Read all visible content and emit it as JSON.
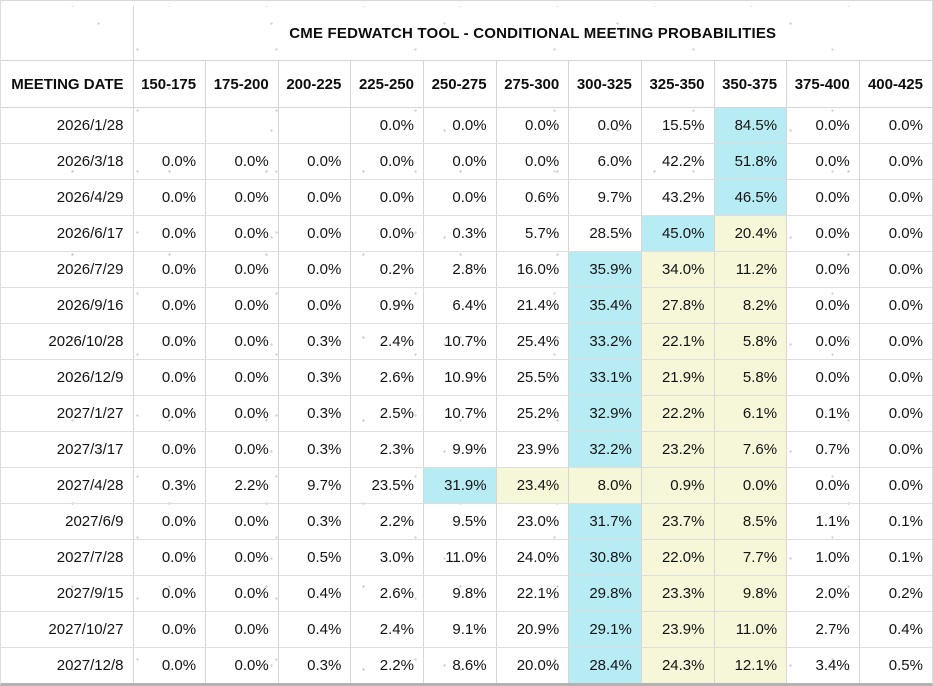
{
  "table": {
    "title": "CME FEDWATCH TOOL - CONDITIONAL MEETING PROBABILITIES",
    "columns": [
      "MEETING DATE",
      "150-175",
      "175-200",
      "200-225",
      "225-250",
      "250-275",
      "275-300",
      "300-325",
      "325-350",
      "350-375",
      "375-400",
      "400-425"
    ],
    "colors": {
      "highlight_max": "#b8ecf4",
      "highlight_path": "#f6f6d8",
      "grid_line": "#d6d6d6",
      "text": "#141414"
    },
    "rows": [
      {
        "date": "2026/1/28",
        "values": [
          "",
          "",
          "",
          "0.0%",
          "0.0%",
          "0.0%",
          "0.0%",
          "15.5%",
          "84.5%",
          "0.0%",
          "0.0%"
        ],
        "max_col": 8,
        "path_cols": []
      },
      {
        "date": "2026/3/18",
        "values": [
          "0.0%",
          "0.0%",
          "0.0%",
          "0.0%",
          "0.0%",
          "0.0%",
          "6.0%",
          "42.2%",
          "51.8%",
          "0.0%",
          "0.0%"
        ],
        "max_col": 8,
        "path_cols": []
      },
      {
        "date": "2026/4/29",
        "values": [
          "0.0%",
          "0.0%",
          "0.0%",
          "0.0%",
          "0.0%",
          "0.6%",
          "9.7%",
          "43.2%",
          "46.5%",
          "0.0%",
          "0.0%"
        ],
        "max_col": 8,
        "path_cols": []
      },
      {
        "date": "2026/6/17",
        "values": [
          "0.0%",
          "0.0%",
          "0.0%",
          "0.0%",
          "0.3%",
          "5.7%",
          "28.5%",
          "45.0%",
          "20.4%",
          "0.0%",
          "0.0%"
        ],
        "max_col": 7,
        "path_cols": [
          8
        ]
      },
      {
        "date": "2026/7/29",
        "values": [
          "0.0%",
          "0.0%",
          "0.0%",
          "0.2%",
          "2.8%",
          "16.0%",
          "35.9%",
          "34.0%",
          "11.2%",
          "0.0%",
          "0.0%"
        ],
        "max_col": 6,
        "path_cols": [
          7,
          8
        ]
      },
      {
        "date": "2026/9/16",
        "values": [
          "0.0%",
          "0.0%",
          "0.0%",
          "0.9%",
          "6.4%",
          "21.4%",
          "35.4%",
          "27.8%",
          "8.2%",
          "0.0%",
          "0.0%"
        ],
        "max_col": 6,
        "path_cols": [
          7,
          8
        ]
      },
      {
        "date": "2026/10/28",
        "values": [
          "0.0%",
          "0.0%",
          "0.3%",
          "2.4%",
          "10.7%",
          "25.4%",
          "33.2%",
          "22.1%",
          "5.8%",
          "0.0%",
          "0.0%"
        ],
        "max_col": 6,
        "path_cols": [
          7,
          8
        ]
      },
      {
        "date": "2026/12/9",
        "values": [
          "0.0%",
          "0.0%",
          "0.3%",
          "2.6%",
          "10.9%",
          "25.5%",
          "33.1%",
          "21.9%",
          "5.8%",
          "0.0%",
          "0.0%"
        ],
        "max_col": 6,
        "path_cols": [
          7,
          8
        ]
      },
      {
        "date": "2027/1/27",
        "values": [
          "0.0%",
          "0.0%",
          "0.3%",
          "2.5%",
          "10.7%",
          "25.2%",
          "32.9%",
          "22.2%",
          "6.1%",
          "0.1%",
          "0.0%"
        ],
        "max_col": 6,
        "path_cols": [
          7,
          8
        ]
      },
      {
        "date": "2027/3/17",
        "values": [
          "0.0%",
          "0.0%",
          "0.3%",
          "2.3%",
          "9.9%",
          "23.9%",
          "32.2%",
          "23.2%",
          "7.6%",
          "0.7%",
          "0.0%"
        ],
        "max_col": 6,
        "path_cols": [
          7,
          8
        ]
      },
      {
        "date": "2027/4/28",
        "values": [
          "0.3%",
          "2.2%",
          "9.7%",
          "23.5%",
          "31.9%",
          "23.4%",
          "8.0%",
          "0.9%",
          "0.0%",
          "0.0%",
          "0.0%"
        ],
        "max_col": 4,
        "path_cols": [
          5,
          6,
          7,
          8
        ]
      },
      {
        "date": "2027/6/9",
        "values": [
          "0.0%",
          "0.0%",
          "0.3%",
          "2.2%",
          "9.5%",
          "23.0%",
          "31.7%",
          "23.7%",
          "8.5%",
          "1.1%",
          "0.1%"
        ],
        "max_col": 6,
        "path_cols": [
          7,
          8
        ]
      },
      {
        "date": "2027/7/28",
        "values": [
          "0.0%",
          "0.0%",
          "0.5%",
          "3.0%",
          "11.0%",
          "24.0%",
          "30.8%",
          "22.0%",
          "7.7%",
          "1.0%",
          "0.1%"
        ],
        "max_col": 6,
        "path_cols": [
          7,
          8
        ]
      },
      {
        "date": "2027/9/15",
        "values": [
          "0.0%",
          "0.0%",
          "0.4%",
          "2.6%",
          "9.8%",
          "22.1%",
          "29.8%",
          "23.3%",
          "9.8%",
          "2.0%",
          "0.2%"
        ],
        "max_col": 6,
        "path_cols": [
          7,
          8
        ]
      },
      {
        "date": "2027/10/27",
        "values": [
          "0.0%",
          "0.0%",
          "0.4%",
          "2.4%",
          "9.1%",
          "20.9%",
          "29.1%",
          "23.9%",
          "11.0%",
          "2.7%",
          "0.4%"
        ],
        "max_col": 6,
        "path_cols": [
          7,
          8
        ]
      },
      {
        "date": "2027/12/8",
        "values": [
          "0.0%",
          "0.0%",
          "0.3%",
          "2.2%",
          "8.6%",
          "20.0%",
          "28.4%",
          "24.3%",
          "12.1%",
          "3.4%",
          "0.5%"
        ],
        "max_col": 6,
        "path_cols": [
          7,
          8
        ]
      }
    ]
  }
}
